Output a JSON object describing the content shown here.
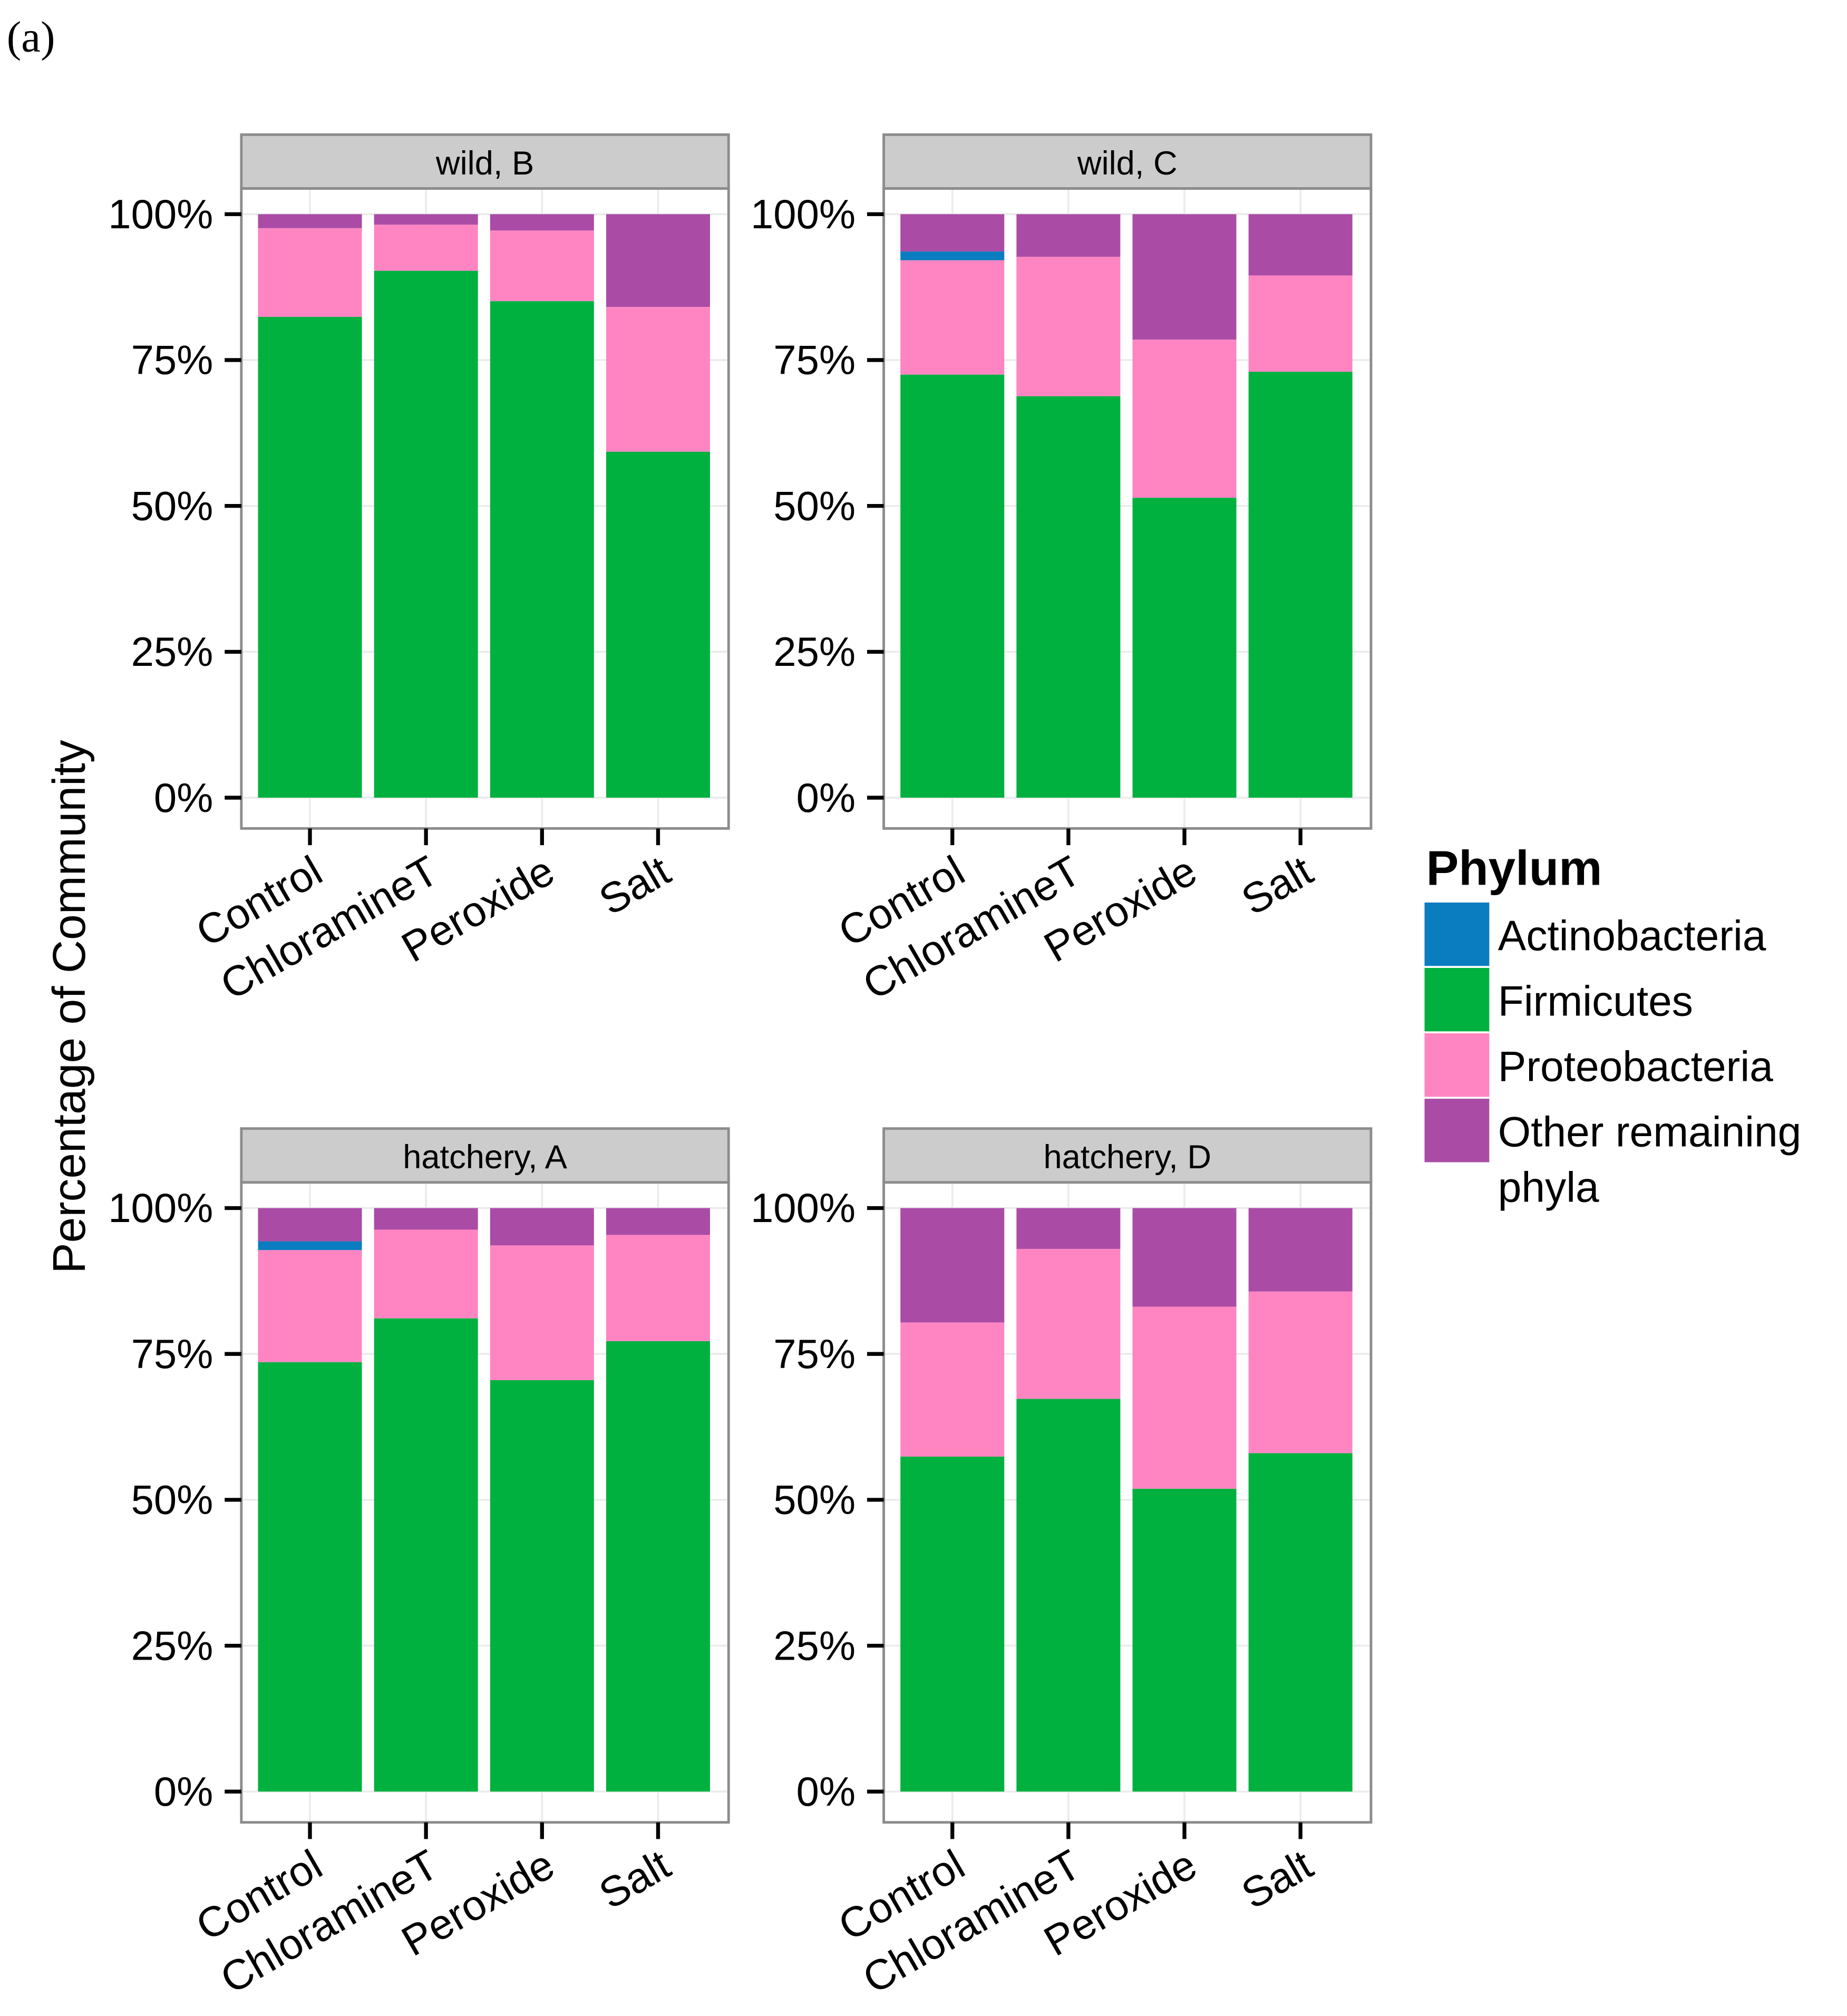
{
  "figure_label": "(a)",
  "colors": {
    "Actinobacteria": "#0a7dc0",
    "Firmicutes": "#00b140",
    "Proteobacteria": "#ff85c2",
    "Other remaining phyla": "#aa4ca6",
    "strip": "#cccccc",
    "border": "#8c8c8c",
    "grid": "#ebebeb"
  },
  "chart_data": {
    "type": "bar",
    "stacked": true,
    "ylabel": "Percentage of Community",
    "ylim": [
      0,
      100
    ],
    "yticks": [
      "0%",
      "25%",
      "50%",
      "75%",
      "100%"
    ],
    "categories": [
      "Control",
      "ChloramineT",
      "Peroxide",
      "Salt"
    ],
    "legend": {
      "title": "Phylum",
      "position": "right",
      "entries": [
        "Actinobacteria",
        "Firmicutes",
        "Proteobacteria",
        "Other remaining phyla"
      ]
    },
    "panels": [
      {
        "title": "wild, B",
        "series": [
          {
            "name": "Firmicutes",
            "values": [
              82.4,
              90.3,
              85.1,
              59.3
            ]
          },
          {
            "name": "Proteobacteria",
            "values": [
              15.2,
              7.9,
              12.1,
              24.8
            ]
          },
          {
            "name": "Actinobacteria",
            "values": [
              0,
              0,
              0,
              0
            ]
          },
          {
            "name": "Other remaining phyla",
            "values": [
              2.4,
              1.8,
              2.8,
              15.9
            ]
          }
        ]
      },
      {
        "title": "wild, C",
        "series": [
          {
            "name": "Firmicutes",
            "values": [
              72.5,
              68.8,
              51.4,
              73.0
            ]
          },
          {
            "name": "Proteobacteria",
            "values": [
              19.6,
              23.9,
              27.1,
              16.5
            ]
          },
          {
            "name": "Actinobacteria",
            "values": [
              1.5,
              0,
              0,
              0
            ]
          },
          {
            "name": "Other remaining phyla",
            "values": [
              6.4,
              7.3,
              21.5,
              10.5
            ]
          }
        ]
      },
      {
        "title": "hatchery, A",
        "series": [
          {
            "name": "Firmicutes",
            "values": [
              73.6,
              81.1,
              70.5,
              77.2
            ]
          },
          {
            "name": "Proteobacteria",
            "values": [
              19.2,
              15.2,
              23.1,
              18.2
            ]
          },
          {
            "name": "Actinobacteria",
            "values": [
              1.5,
              0,
              0,
              0
            ]
          },
          {
            "name": "Other remaining phyla",
            "values": [
              5.7,
              3.7,
              6.4,
              4.6
            ]
          }
        ]
      },
      {
        "title": "hatchery, D",
        "series": [
          {
            "name": "Firmicutes",
            "values": [
              57.4,
              67.3,
              51.9,
              58.0
            ]
          },
          {
            "name": "Proteobacteria",
            "values": [
              23.0,
              25.7,
              31.2,
              27.7
            ]
          },
          {
            "name": "Actinobacteria",
            "values": [
              0,
              0,
              0,
              0
            ]
          },
          {
            "name": "Other remaining phyla",
            "values": [
              19.6,
              7.0,
              16.9,
              14.3
            ]
          }
        ]
      }
    ]
  }
}
